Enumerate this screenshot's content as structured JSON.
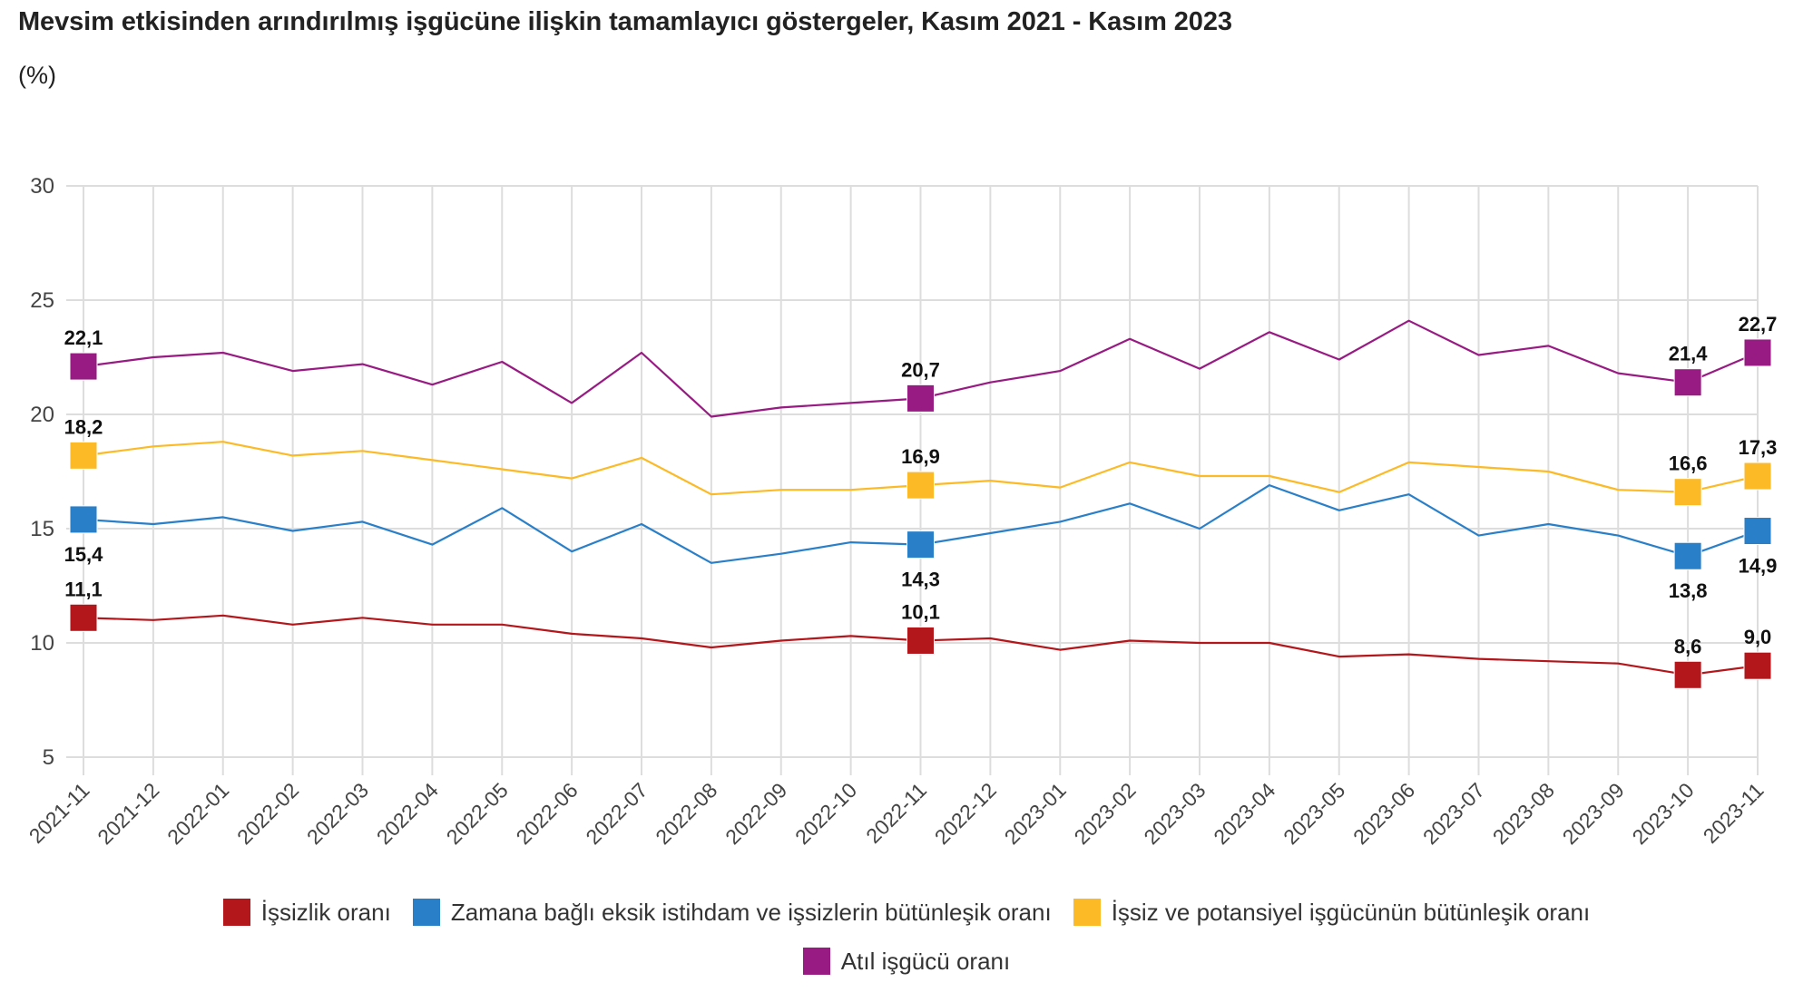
{
  "chart_data": {
    "type": "line",
    "title": "Mevsim etkisinden arındırılmış işgücüne ilişkin tamamlayıcı göstergeler, Kasım 2021 - Kasım 2023",
    "subtitle": "(%)",
    "xlabel": "",
    "ylabel": "",
    "ylim": [
      5,
      30
    ],
    "yticks": [
      5,
      10,
      15,
      20,
      25,
      30
    ],
    "ytick_labels": [
      "5",
      "10",
      "15",
      "20",
      "25",
      "30"
    ],
    "grid": true,
    "legend_position": "bottom",
    "categories": [
      "2021-11",
      "2021-12",
      "2022-01",
      "2022-02",
      "2022-03",
      "2022-04",
      "2022-05",
      "2022-06",
      "2022-07",
      "2022-08",
      "2022-09",
      "2022-10",
      "2022-11",
      "2022-12",
      "2023-01",
      "2023-02",
      "2023-03",
      "2023-04",
      "2023-05",
      "2023-06",
      "2023-07",
      "2023-08",
      "2023-09",
      "2023-10",
      "2023-11"
    ],
    "marked_indices": [
      0,
      12,
      23,
      24
    ],
    "series": [
      {
        "name": "İşsizlik oranı",
        "color": "#b3161b",
        "label_position": "above",
        "values": [
          11.1,
          11.0,
          11.2,
          10.8,
          11.1,
          10.8,
          10.8,
          10.4,
          10.2,
          9.8,
          10.1,
          10.3,
          10.1,
          10.2,
          9.7,
          10.1,
          10.0,
          10.0,
          9.4,
          9.5,
          9.3,
          9.2,
          9.1,
          8.6,
          9.0
        ],
        "data_labels": {
          "0": "11,1",
          "12": "10,1",
          "23": "8,6",
          "24": "9,0"
        }
      },
      {
        "name": "Zamana bağlı eksik istihdam ve işsizlerin bütünleşik oranı",
        "color": "#2a7fc9",
        "label_position": "below",
        "values": [
          15.4,
          15.2,
          15.5,
          14.9,
          15.3,
          14.3,
          15.9,
          14.0,
          15.2,
          13.5,
          13.9,
          14.4,
          14.3,
          14.8,
          15.3,
          16.1,
          15.0,
          16.9,
          15.8,
          16.5,
          14.7,
          15.2,
          14.7,
          13.8,
          14.9
        ],
        "data_labels": {
          "0": "15,4",
          "12": "14,3",
          "23": "13,8",
          "24": "14,9"
        }
      },
      {
        "name": "İşsiz ve potansiyel işgücünün bütünleşik oranı",
        "color": "#fbba26",
        "label_position": "above",
        "values": [
          18.2,
          18.6,
          18.8,
          18.2,
          18.4,
          18.0,
          17.6,
          17.2,
          18.1,
          16.5,
          16.7,
          16.7,
          16.9,
          17.1,
          16.8,
          17.9,
          17.3,
          17.3,
          16.6,
          17.9,
          17.7,
          17.5,
          16.7,
          16.6,
          17.3
        ],
        "data_labels": {
          "0": "18,2",
          "12": "16,9",
          "23": "16,6",
          "24": "17,3"
        }
      },
      {
        "name": "Atıl işgücü oranı",
        "color": "#971b82",
        "label_position": "above",
        "values": [
          22.1,
          22.5,
          22.7,
          21.9,
          22.2,
          21.3,
          22.3,
          20.5,
          22.7,
          19.9,
          20.3,
          20.5,
          20.7,
          21.4,
          21.9,
          23.3,
          22.0,
          23.6,
          22.4,
          24.1,
          22.6,
          23.0,
          21.8,
          21.4,
          22.7
        ],
        "data_labels": {
          "0": "22,1",
          "12": "20,7",
          "23": "21,4",
          "24": "22,7"
        }
      }
    ]
  },
  "legend": {
    "items": [
      {
        "label": "İşsizlik oranı",
        "color": "#b3161b"
      },
      {
        "label": "Zamana bağlı eksik istihdam ve işsizlerin bütünleşik oranı",
        "color": "#2a7fc9"
      },
      {
        "label": "İşsiz ve potansiyel işgücünün bütünleşik oranı",
        "color": "#fbba26"
      },
      {
        "label": "Atıl işgücü oranı",
        "color": "#971b82"
      }
    ]
  },
  "colors": {
    "grid": "#dddddd",
    "axis_text": "#444444",
    "label_text": "#111111"
  }
}
